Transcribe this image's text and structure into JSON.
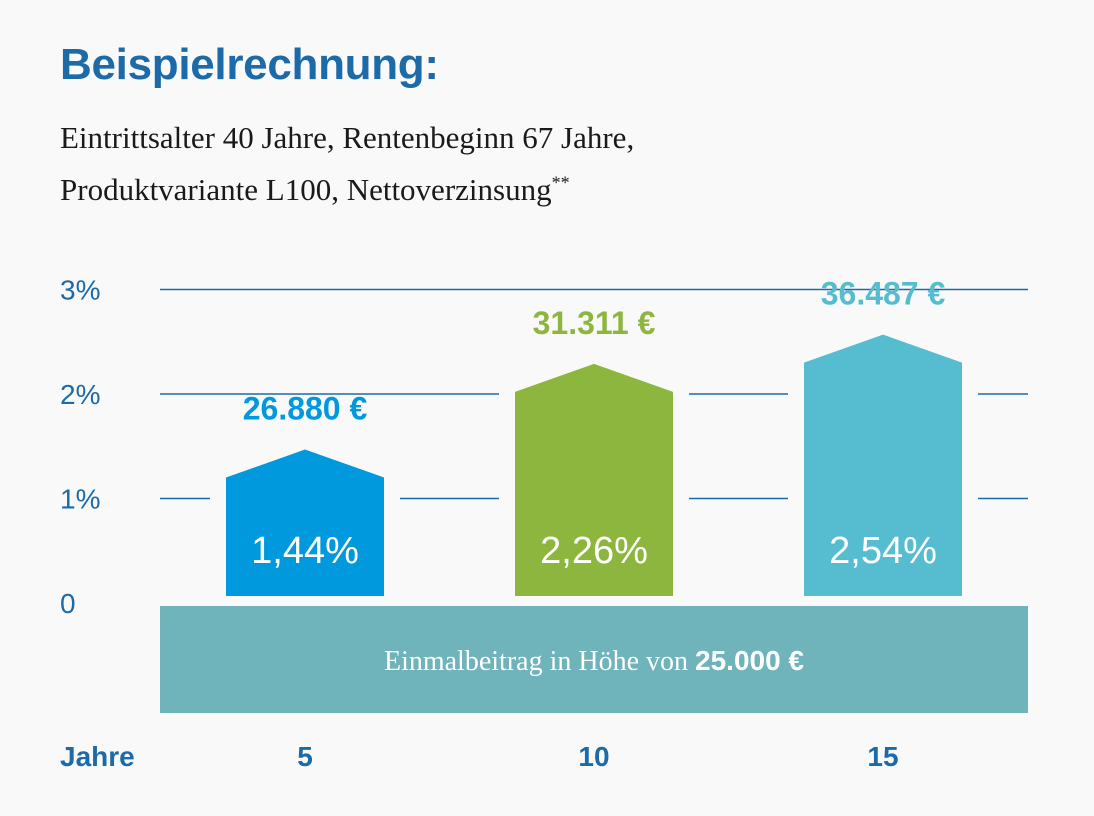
{
  "header": {
    "title": "Beispielrechnung:",
    "subtitle_line1": "Eintrittsalter 40 Jahre, Rentenbeginn 67 Jahre,",
    "subtitle_line2": "Produktvariante L100, Nettoverzinsung",
    "subtitle_footnote": "**"
  },
  "chart_data": {
    "type": "bar",
    "title": "Beispielrechnung:",
    "xlabel": "Jahre",
    "ylabel": "",
    "categories": [
      "5",
      "10",
      "15"
    ],
    "values": [
      1.44,
      2.26,
      2.54
    ],
    "value_labels": [
      "1,44%",
      "2,26%",
      "2,54%"
    ],
    "amounts": [
      "26.880 €",
      "31.311 €",
      "36.487 €"
    ],
    "yticks": [
      {
        "value": 0,
        "label": "0"
      },
      {
        "value": 1,
        "label": "1%"
      },
      {
        "value": 2,
        "label": "2%"
      },
      {
        "value": 3,
        "label": "3%"
      }
    ],
    "ylim": [
      0,
      3
    ],
    "grid": true,
    "colors": [
      "#0099dd",
      "#8db63e",
      "#56bdd0"
    ],
    "base": {
      "label": "Einmalbeitrag in Höhe von ",
      "amount": "25.000 €",
      "color": "#6fb3bb"
    },
    "text_color": "#1c6aa8"
  }
}
